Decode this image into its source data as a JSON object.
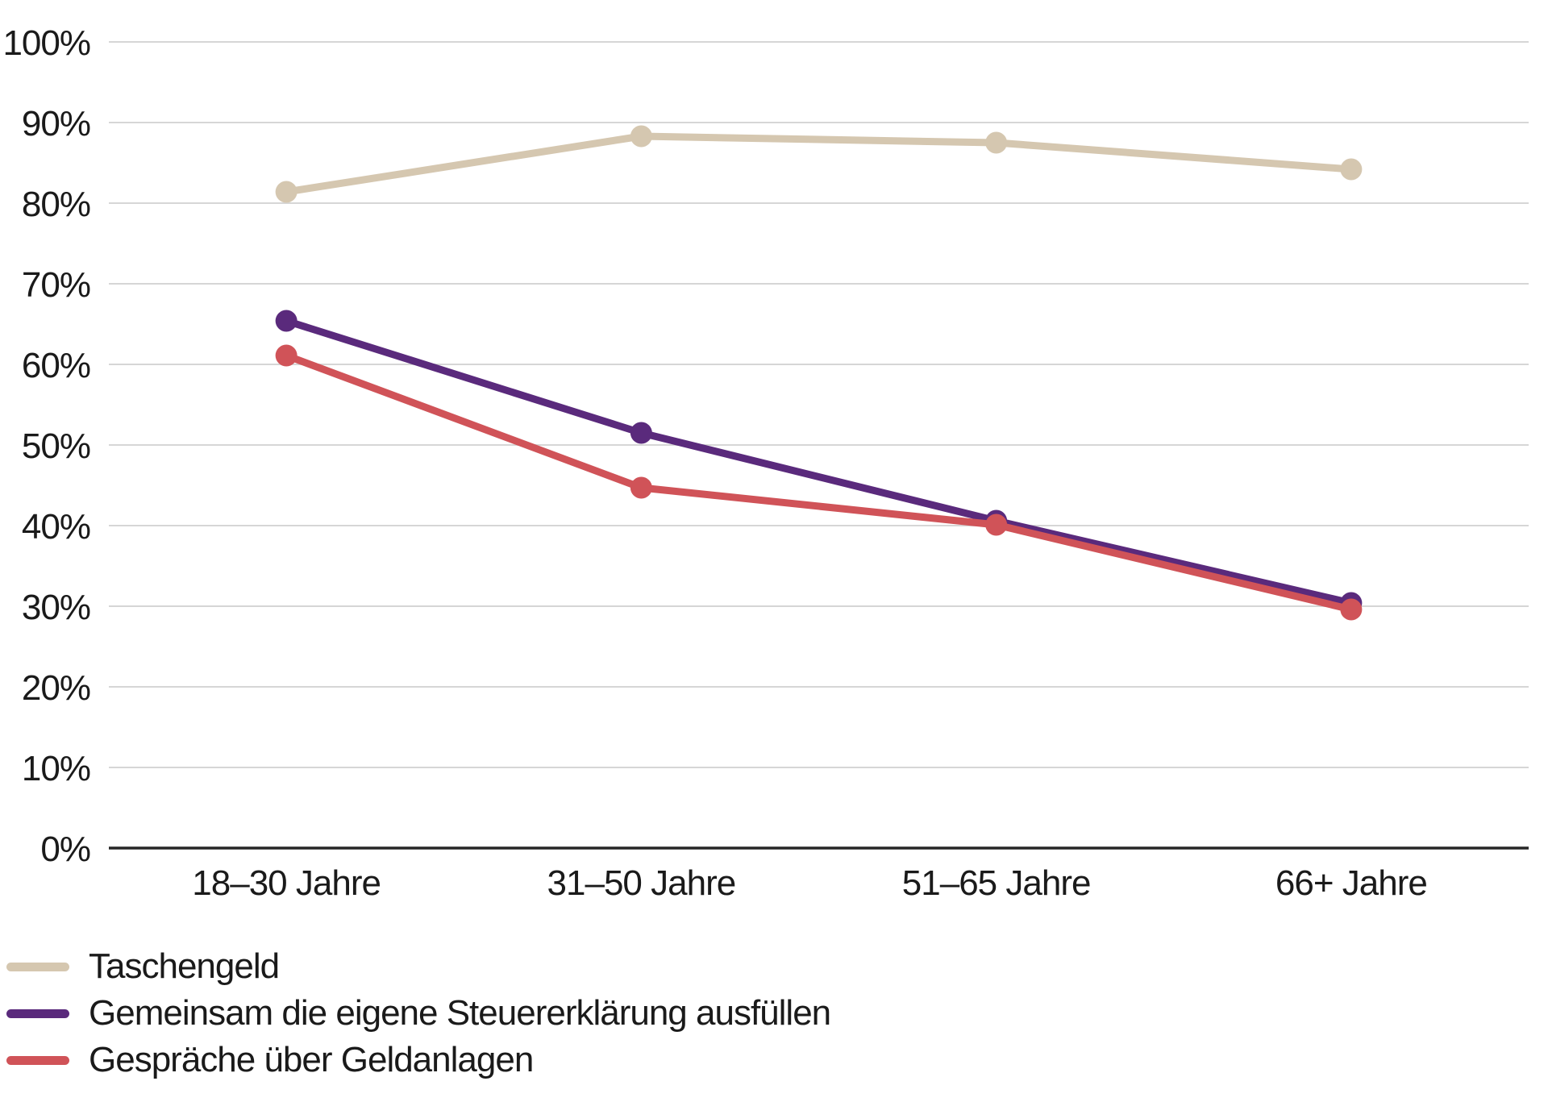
{
  "chart_data": {
    "type": "line",
    "categories": [
      "18–30 Jahre",
      "31–50 Jahre",
      "51–65 Jahre",
      "66+ Jahre"
    ],
    "series": [
      {
        "name": "Taschengeld",
        "color": "#d5c7b0",
        "values": [
          81.4,
          88.3,
          87.5,
          84.2
        ]
      },
      {
        "name": "Gemeinsam die eigene Steuererklärung ausfüllen",
        "color": "#5a2a7c",
        "values": [
          65.4,
          51.5,
          40.6,
          30.4
        ]
      },
      {
        "name": "Gespräche über Geldanlagen",
        "color": "#d05358",
        "values": [
          61.1,
          44.7,
          40.1,
          29.6
        ]
      }
    ],
    "yticks": [
      {
        "label": "100%",
        "value": 100
      },
      {
        "label": "90%",
        "value": 90
      },
      {
        "label": "80%",
        "value": 80
      },
      {
        "label": "70%",
        "value": 70
      },
      {
        "label": "60%",
        "value": 60
      },
      {
        "label": "50%",
        "value": 50
      },
      {
        "label": "40%",
        "value": 40
      },
      {
        "label": "30%",
        "value": 30
      },
      {
        "label": "20%",
        "value": 20
      },
      {
        "label": "10%",
        "value": 10
      },
      {
        "label": "0%",
        "value": 0
      }
    ],
    "ylim": [
      0,
      100
    ],
    "grid": true,
    "legend_position": "bottom-left",
    "title": "",
    "xlabel": "",
    "ylabel": ""
  },
  "colors": {
    "background": "#ffffff",
    "gridline": "#d6d6d6",
    "axis": "#262626",
    "text": "#1a1a1a"
  }
}
